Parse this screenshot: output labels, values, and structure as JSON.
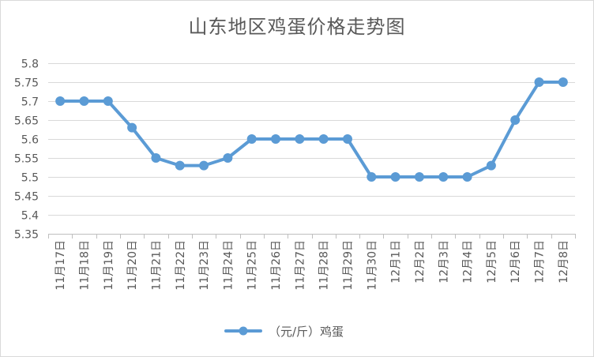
{
  "chart_data": {
    "type": "line",
    "title": "山东地区鸡蛋价格走势图",
    "categories": [
      "11月17日",
      "11月18日",
      "11月19日",
      "11月20日",
      "11月21日",
      "11月22日",
      "11月23日",
      "11月24日",
      "11月25日",
      "11月26日",
      "11月27日",
      "11月28日",
      "11月29日",
      "11月30日",
      "12月1日",
      "12月2日",
      "12月3日",
      "12月4日",
      "12月5日",
      "12月6日",
      "12月7日",
      "12月8日"
    ],
    "series": [
      {
        "name": "（元/斤）鸡蛋",
        "values": [
          5.7,
          5.7,
          5.7,
          5.63,
          5.55,
          5.53,
          5.53,
          5.55,
          5.6,
          5.6,
          5.6,
          5.6,
          5.6,
          5.5,
          5.5,
          5.5,
          5.5,
          5.5,
          5.53,
          5.65,
          5.75,
          5.75
        ]
      }
    ],
    "ylim": [
      5.35,
      5.8
    ],
    "yticks": [
      "5.8",
      "5.75",
      "5.7",
      "5.65",
      "5.6",
      "5.55",
      "5.5",
      "5.45",
      "5.4",
      "5.35"
    ],
    "grid": true,
    "legend": "bottom",
    "color": "#5b9bd5"
  }
}
